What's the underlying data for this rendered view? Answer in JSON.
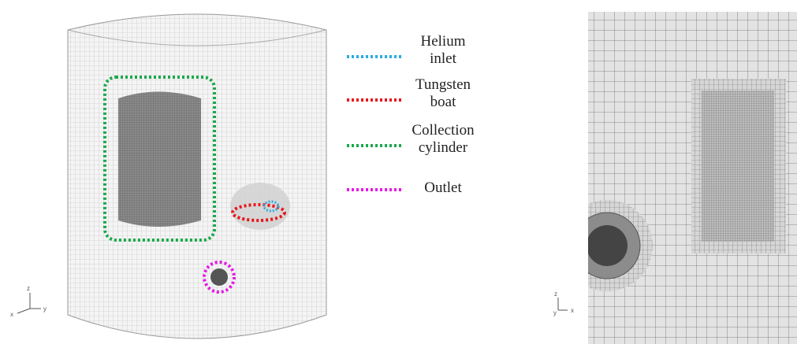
{
  "legend": {
    "items": [
      {
        "lines": [
          "Helium",
          "inlet"
        ],
        "color": "#29abe2"
      },
      {
        "lines": [
          "Tungsten",
          "boat"
        ],
        "color": "#e8161b"
      },
      {
        "lines": [
          "Collection",
          "cylinder"
        ],
        "color": "#1aa84b"
      },
      {
        "lines": [
          "Outlet"
        ],
        "color": "#e619e6"
      }
    ]
  },
  "left_axes": {
    "z": "z",
    "x": "x",
    "y": "y"
  },
  "right_axes": {
    "z": "z",
    "y": "y",
    "x": "x"
  }
}
